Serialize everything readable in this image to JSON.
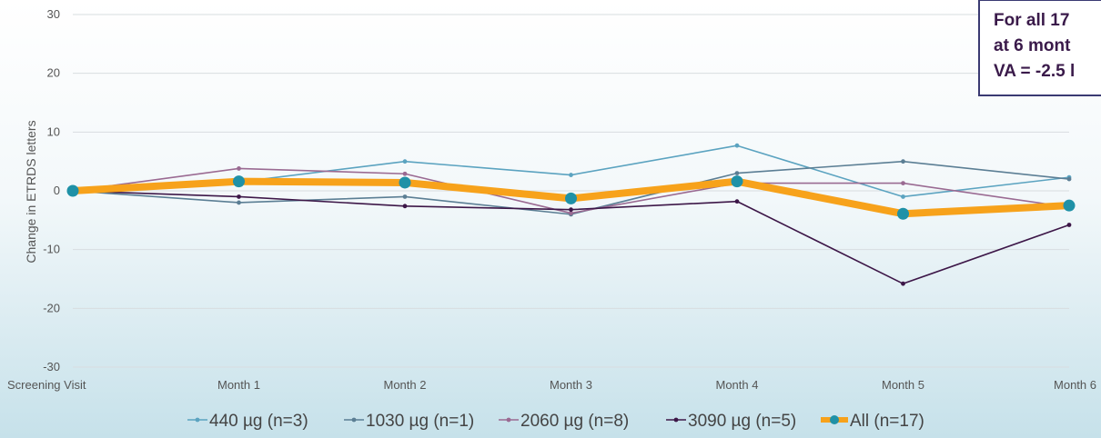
{
  "chart_data": {
    "type": "line",
    "title": "",
    "xlabel": "",
    "ylabel": "Change in ETRDS letters",
    "ylim": [
      -30,
      30
    ],
    "yticks": [
      30,
      20,
      10,
      0,
      -10,
      -20,
      -30
    ],
    "categories": [
      "Screening Visit",
      "Month 1",
      "Month 2",
      "Month 3",
      "Month 4",
      "Month 5",
      "Month 6"
    ],
    "series": [
      {
        "name": "440 µg (n=3)",
        "color": "#5ba3c0",
        "values": [
          0,
          1.5,
          5,
          2.7,
          7.7,
          -1,
          2.3
        ]
      },
      {
        "name": "1030 µg (n=1)",
        "color": "#5b7e94",
        "values": [
          0,
          -2,
          -1,
          -4,
          3,
          5,
          2
        ]
      },
      {
        "name": "2060 µg (n=8)",
        "color": "#9a6a92",
        "values": [
          0,
          3.8,
          2.9,
          -3.8,
          1.3,
          1.3,
          -2.8
        ]
      },
      {
        "name": "3090 µg (n=5)",
        "color": "#3d1748",
        "values": [
          0,
          -1,
          -2.6,
          -3.2,
          -1.8,
          -15.8,
          -5.8
        ]
      },
      {
        "name": "All (n=17)",
        "color": "#f7a21b",
        "marker_color": "#1f91a7",
        "values": [
          0,
          1.6,
          1.4,
          -1.3,
          1.6,
          -3.9,
          -2.5
        ]
      }
    ],
    "grid": true,
    "legend": "bottom",
    "annotation": [
      "For all 17",
      "at 6 mont",
      "VA = -2.5 l"
    ]
  }
}
